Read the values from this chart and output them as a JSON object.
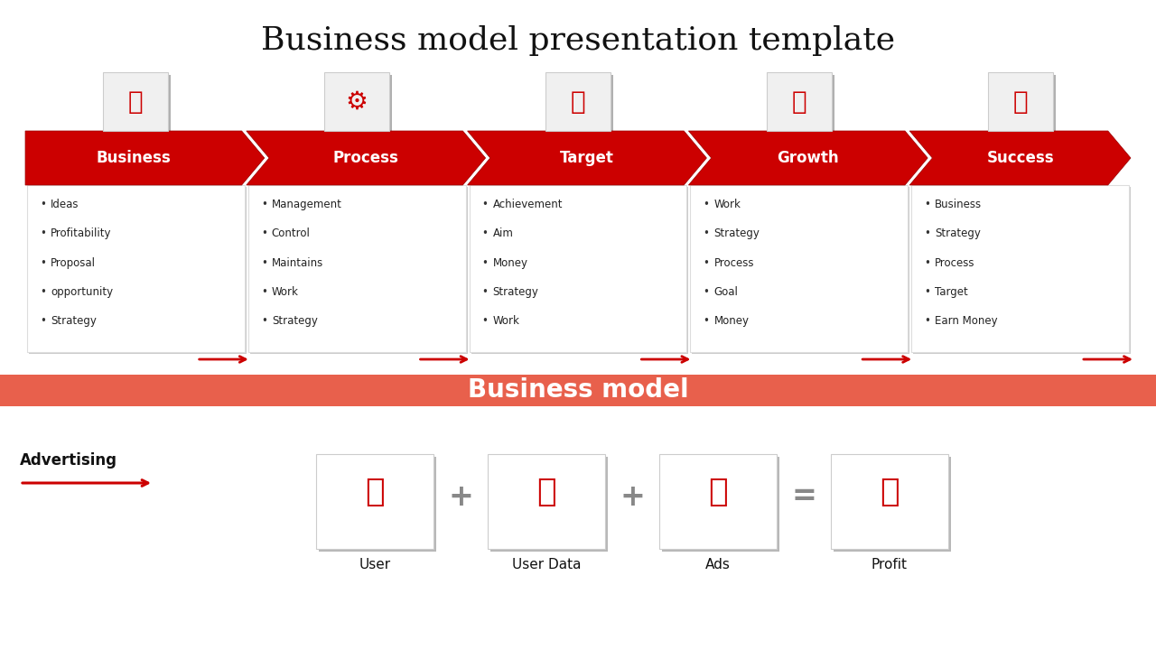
{
  "title": "Business model presentation template",
  "title_fontsize": 26,
  "bg_color": "#ffffff",
  "arrow_color": "#cc0000",
  "arrow_dark": "#990000",
  "banner_color": "#e8604c",
  "banner_text": "Business model",
  "banner_text_color": "#ffffff",
  "sections": [
    {
      "label": "Business",
      "bullets": [
        "Ideas",
        "Profitability",
        "Proposal",
        "opportunity",
        "Strategy"
      ]
    },
    {
      "label": "Process",
      "bullets": [
        "Management",
        "Control",
        "Maintains",
        "Work",
        "Strategy"
      ]
    },
    {
      "label": "Target",
      "bullets": [
        "Achievement",
        "Aim",
        "Money",
        "Strategy",
        "Work"
      ]
    },
    {
      "label": "Growth",
      "bullets": [
        "Work",
        "Strategy",
        "Process",
        "Goal",
        "Money"
      ]
    },
    {
      "label": "Success",
      "bullets": [
        "Business",
        "Strategy",
        "Process",
        "Target",
        "Earn Money"
      ]
    }
  ],
  "bottom_items": [
    {
      "label": "User"
    },
    {
      "label": "User Data"
    },
    {
      "label": "Ads"
    },
    {
      "label": "Profit"
    }
  ],
  "operators": [
    "+",
    "+",
    "="
  ],
  "advertising_label": "Advertising"
}
